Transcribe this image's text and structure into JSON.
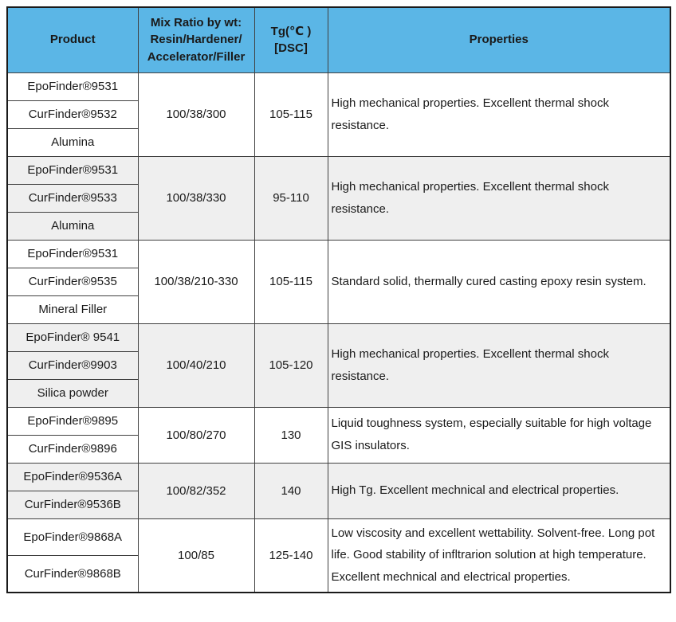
{
  "table": {
    "headers": {
      "product": "Product",
      "mix_ratio": "Mix Ratio by wt:\nResin/Hardener/\nAccelerator/Filler",
      "tg": "Tg(℃ )\n[DSC]",
      "properties": "Properties"
    },
    "groups": [
      {
        "products": [
          "EpoFinder®9531",
          "CurFinder®9532",
          "Alumina"
        ],
        "mix_ratio": "100/38/300",
        "tg": "105-115",
        "properties": "High mechanical properties. Excellent thermal shock resistance."
      },
      {
        "products": [
          "EpoFinder®9531",
          "CurFinder®9533",
          "Alumina"
        ],
        "mix_ratio": "100/38/330",
        "tg": "95-110",
        "properties": "High mechanical properties. Excellent thermal shock resistance."
      },
      {
        "products": [
          "EpoFinder®9531",
          "CurFinder®9535",
          "Mineral Filler"
        ],
        "mix_ratio": "100/38/210-330",
        "tg": "105-115",
        "properties": "Standard solid, thermally cured casting epoxy resin system."
      },
      {
        "products": [
          "EpoFinder® 9541",
          "CurFinder®9903",
          "Silica powder"
        ],
        "mix_ratio": "100/40/210",
        "tg": "105-120",
        "properties": "High mechanical properties. Excellent thermal shock resistance."
      },
      {
        "products": [
          "EpoFinder®9895",
          "CurFinder®9896"
        ],
        "mix_ratio": "100/80/270",
        "tg": "130",
        "properties": "Liquid toughness system, especially suitable for high voltage GIS insulators."
      },
      {
        "products": [
          "EpoFinder®9536A",
          "CurFinder®9536B"
        ],
        "mix_ratio": "100/82/352",
        "tg": "140",
        "properties": "High Tg. Excellent mechnical and electrical properties."
      },
      {
        "products": [
          "EpoFinder®9868A",
          "CurFinder®9868B"
        ],
        "mix_ratio": "100/85",
        "tg": "125-140",
        "properties": "Low viscosity and excellent wettability. Solvent-free. Long pot life. Good stability of infltrarion solution at high temperature. Excellent mechnical and electrical properties."
      }
    ]
  },
  "colors": {
    "header_bg": "#5BB6E6",
    "shaded_row_bg": "#EFEFEF",
    "border": "#404040",
    "text": "#1A1A1A"
  }
}
